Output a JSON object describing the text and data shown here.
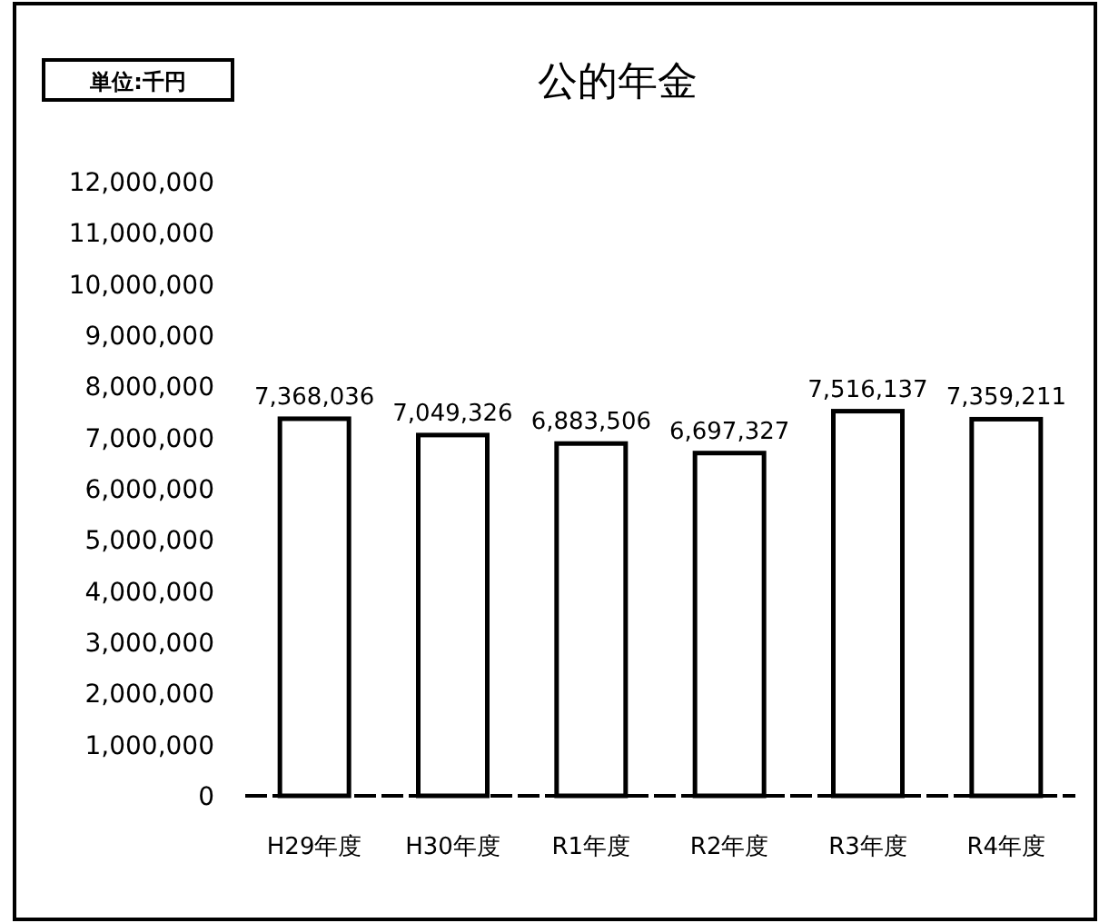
{
  "chart_data": {
    "type": "bar",
    "title": "公的年金",
    "annotations": [
      "単位:千円"
    ],
    "categories": [
      "H29年度",
      "H30年度",
      "R1年度",
      "R2年度",
      "R3年度",
      "R4年度"
    ],
    "values": [
      7368036,
      7049326,
      6883506,
      6697327,
      7516137,
      7359211
    ],
    "value_labels": [
      "7,368,036",
      "7,049,326",
      "6,883,506",
      "6,697,327",
      "7,516,137",
      "7,359,211"
    ],
    "color": "#ffffff",
    "grid": false,
    "ylim": [
      0,
      12000000
    ],
    "yticks": [
      {
        "value": 0,
        "label": "0"
      },
      {
        "value": 1000000,
        "label": "1,000,000"
      },
      {
        "value": 2000000,
        "label": "2,000,000"
      },
      {
        "value": 3000000,
        "label": "3,000,000"
      },
      {
        "value": 4000000,
        "label": "4,000,000"
      },
      {
        "value": 5000000,
        "label": "5,000,000"
      },
      {
        "value": 6000000,
        "label": "6,000,000"
      },
      {
        "value": 7000000,
        "label": "7,000,000"
      },
      {
        "value": 8000000,
        "label": "8,000,000"
      },
      {
        "value": 9000000,
        "label": "9,000,000"
      },
      {
        "value": 10000000,
        "label": "10,000,000"
      },
      {
        "value": 11000000,
        "label": "11,000,000"
      },
      {
        "value": 12000000,
        "label": "12,000,000"
      }
    ]
  }
}
